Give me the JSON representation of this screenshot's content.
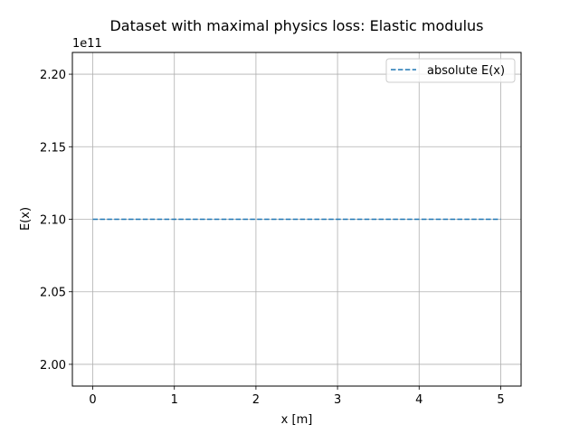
{
  "chart_data": {
    "type": "line",
    "title": "Dataset with maximal physics loss: Elastic modulus",
    "xlabel": "x [m]",
    "ylabel": "E(x)",
    "y_offset_label": "1e11",
    "xlim": [
      -0.25,
      5.25
    ],
    "ylim": [
      1.985,
      2.215
    ],
    "x_ticks": [
      0,
      1,
      2,
      3,
      4,
      5
    ],
    "x_tick_labels": [
      "0",
      "1",
      "2",
      "3",
      "4",
      "5"
    ],
    "y_ticks": [
      2.0,
      2.05,
      2.1,
      2.15,
      2.2
    ],
    "y_tick_labels": [
      "2.00",
      "2.05",
      "2.10",
      "2.15",
      "2.20"
    ],
    "grid": true,
    "legend_position": "top-right",
    "series": [
      {
        "name": "absolute E(x)",
        "style": "dashed",
        "color": "#1f77b4",
        "x": [
          0,
          5
        ],
        "y": [
          2.1,
          2.1
        ]
      }
    ]
  }
}
